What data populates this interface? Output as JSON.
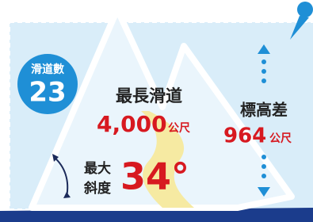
{
  "trail_count": {
    "label": "滑道數",
    "value": "23"
  },
  "longest_trail": {
    "label": "最長滑道",
    "value": "4,000",
    "unit": "公尺"
  },
  "elevation_difference": {
    "label": "標高差",
    "value": "964",
    "unit": "公尺"
  },
  "max_slope": {
    "label_line1": "最大",
    "label_line2": "斜度",
    "value": "34°"
  }
}
